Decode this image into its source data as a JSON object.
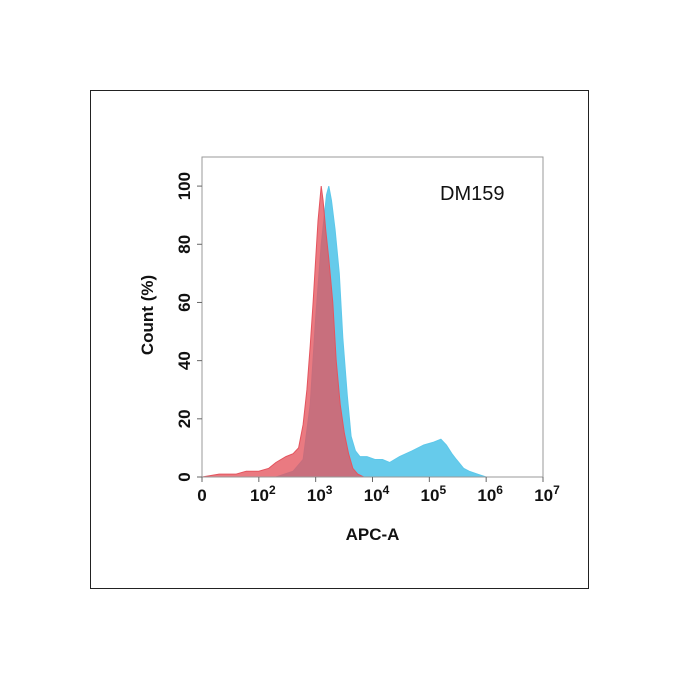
{
  "chart_data": {
    "type": "area",
    "title": "",
    "annotation": "DM159",
    "xlabel": "APC-A",
    "ylabel": "Count  (%)",
    "x_scale": "log",
    "xlim": [
      10,
      10000000
    ],
    "ylim": [
      0,
      110
    ],
    "grid": false,
    "x_ticks": [
      {
        "value": 10,
        "base": "0",
        "exp": ""
      },
      {
        "value": 100,
        "base": "10",
        "exp": "2"
      },
      {
        "value": 1000,
        "base": "10",
        "exp": "3"
      },
      {
        "value": 10000,
        "base": "10",
        "exp": "4"
      },
      {
        "value": 100000,
        "base": "10",
        "exp": "5"
      },
      {
        "value": 1000000,
        "base": "10",
        "exp": "6"
      },
      {
        "value": 10000000,
        "base": "10",
        "exp": "7"
      }
    ],
    "y_ticks": [
      0,
      20,
      40,
      60,
      80,
      100
    ],
    "series": [
      {
        "color": "#5ec8ea",
        "points": [
          [
            10,
            0
          ],
          [
            200,
            0
          ],
          [
            400,
            2
          ],
          [
            600,
            6
          ],
          [
            800,
            25
          ],
          [
            1000,
            55
          ],
          [
            1250,
            80
          ],
          [
            1550,
            97
          ],
          [
            1700,
            100
          ],
          [
            1900,
            95
          ],
          [
            2200,
            85
          ],
          [
            2600,
            70
          ],
          [
            3000,
            48
          ],
          [
            3600,
            28
          ],
          [
            4200,
            14
          ],
          [
            5000,
            9
          ],
          [
            6000,
            7
          ],
          [
            8000,
            7
          ],
          [
            11000,
            6
          ],
          [
            15000,
            6
          ],
          [
            20000,
            5
          ],
          [
            30000,
            7
          ],
          [
            50000,
            9
          ],
          [
            80000,
            11
          ],
          [
            120000,
            12
          ],
          [
            160000,
            13
          ],
          [
            200000,
            11
          ],
          [
            250000,
            8
          ],
          [
            300000,
            6
          ],
          [
            400000,
            3
          ],
          [
            500000,
            2
          ],
          [
            700000,
            1
          ],
          [
            1000000,
            0
          ],
          [
            10000000,
            0
          ]
        ]
      },
      {
        "color": "#e4545e",
        "points": [
          [
            10,
            0
          ],
          [
            20,
            1
          ],
          [
            40,
            1
          ],
          [
            60,
            2
          ],
          [
            100,
            2
          ],
          [
            150,
            3
          ],
          [
            200,
            5
          ],
          [
            300,
            7
          ],
          [
            400,
            8
          ],
          [
            500,
            10
          ],
          [
            600,
            18
          ],
          [
            700,
            30
          ],
          [
            800,
            45
          ],
          [
            900,
            60
          ],
          [
            1000,
            75
          ],
          [
            1100,
            88
          ],
          [
            1250,
            100
          ],
          [
            1350,
            95
          ],
          [
            1500,
            85
          ],
          [
            1700,
            75
          ],
          [
            2000,
            60
          ],
          [
            2300,
            40
          ],
          [
            2700,
            25
          ],
          [
            3200,
            15
          ],
          [
            3800,
            8
          ],
          [
            4500,
            3
          ],
          [
            5500,
            1
          ],
          [
            7000,
            0
          ],
          [
            10000000,
            0
          ]
        ]
      }
    ]
  }
}
